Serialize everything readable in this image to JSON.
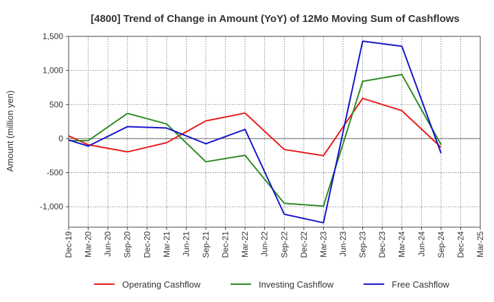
{
  "chart_data": {
    "type": "line",
    "title": "[4800]  Trend of Change in Amount (YoY) of 12Mo Moving Sum of Cashflows",
    "xlabel": "",
    "ylabel": "Amount (million yen)",
    "ylim": [
      -1300,
      1500
    ],
    "grid": true,
    "legend_position": "bottom",
    "categories": [
      "Dec-19",
      "Mar-20",
      "Jun-20",
      "Sep-20",
      "Dec-20",
      "Mar-21",
      "Jun-21",
      "Sep-21",
      "Dec-21",
      "Mar-22",
      "Jun-22",
      "Sep-22",
      "Dec-22",
      "Mar-23",
      "Jun-23",
      "Sep-23",
      "Dec-23",
      "Mar-24",
      "Jun-24",
      "Sep-24",
      "Dec-24",
      "Mar-25"
    ],
    "y_ticks": [
      1500,
      1000,
      500,
      0,
      -500,
      -1000
    ],
    "y_tick_labels": [
      "1,500",
      "1,000",
      "500",
      "0",
      "-500",
      "-1,000"
    ],
    "series": [
      {
        "name": "Operating Cashflow",
        "color": "#e8191a",
        "points": [
          [
            0,
            40
          ],
          [
            1,
            -90
          ],
          [
            3,
            -195
          ],
          [
            5,
            -60
          ],
          [
            7,
            260
          ],
          [
            9,
            375
          ],
          [
            11,
            -160
          ],
          [
            13,
            -250
          ],
          [
            15,
            590
          ],
          [
            17,
            410
          ],
          [
            19,
            -130
          ]
        ]
      },
      {
        "name": "Investing Cashflow",
        "color": "#2a8a22",
        "points": [
          [
            0,
            -30
          ],
          [
            1,
            -30
          ],
          [
            3,
            370
          ],
          [
            5,
            215
          ],
          [
            7,
            -340
          ],
          [
            9,
            -245
          ],
          [
            11,
            -950
          ],
          [
            13,
            -990
          ],
          [
            15,
            840
          ],
          [
            17,
            940
          ],
          [
            19,
            -90
          ]
        ]
      },
      {
        "name": "Free Cashflow",
        "color": "#1414c8",
        "points": [
          [
            0,
            -20
          ],
          [
            1,
            -110
          ],
          [
            3,
            175
          ],
          [
            5,
            155
          ],
          [
            7,
            -75
          ],
          [
            9,
            135
          ],
          [
            11,
            -1110
          ],
          [
            13,
            -1235
          ],
          [
            15,
            1430
          ],
          [
            17,
            1355
          ],
          [
            19,
            -215
          ]
        ]
      }
    ]
  }
}
